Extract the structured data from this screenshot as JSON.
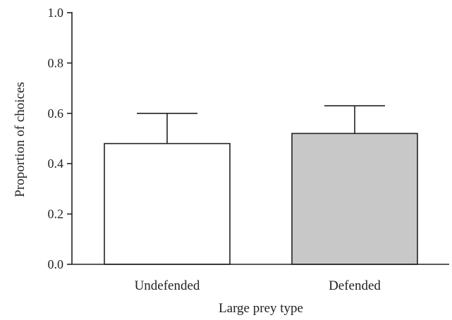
{
  "chart_data": {
    "type": "bar",
    "title": "",
    "xlabel": "Large prey type",
    "ylabel": "Proportion of choices",
    "categories": [
      "Undefended",
      "Defended"
    ],
    "values": [
      0.48,
      0.52
    ],
    "error_upper": [
      0.6,
      0.63
    ],
    "ylim": [
      0.0,
      1.0
    ],
    "yticks": [
      "0.0",
      "0.2",
      "0.4",
      "0.6",
      "0.8",
      "1.0"
    ],
    "bar_colors": [
      "#ffffff",
      "#c8c8c8"
    ],
    "grid": false,
    "legend": "none"
  }
}
